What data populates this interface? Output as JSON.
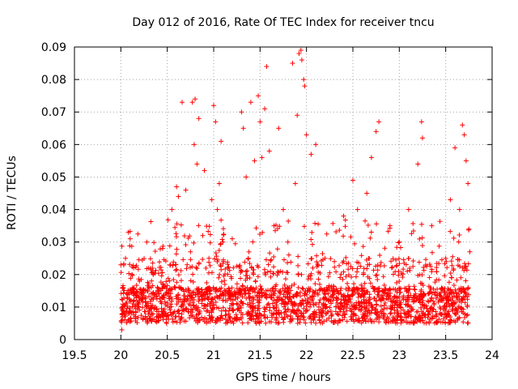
{
  "chart_data": {
    "type": "scatter",
    "title": "Day 012 of 2016, Rate Of TEC Index for receiver tncu",
    "xlabel": "GPS time / hours",
    "ylabel": "ROTI / TECUs",
    "xlim": [
      19.5,
      24
    ],
    "ylim": [
      0,
      0.09
    ],
    "x_ticks": [
      "19.5",
      "20",
      "20.5",
      "21",
      "21.5",
      "22",
      "22.5",
      "23",
      "23.5",
      "24"
    ],
    "y_ticks": [
      "0",
      "0.01",
      "0.02",
      "0.03",
      "0.04",
      "0.05",
      "0.06",
      "0.07",
      "0.08",
      "0.09"
    ],
    "grid": true,
    "marker": "plus",
    "series": [
      {
        "name": "ROTI",
        "color": "#ff0000",
        "points": [
          [
            20.0,
            0.023
          ],
          [
            20.01,
            0.003
          ],
          [
            20.02,
            0.016
          ],
          [
            20.05,
            0.025
          ],
          [
            20.08,
            0.033
          ],
          [
            20.1,
            0.031
          ],
          [
            20.12,
            0.02
          ],
          [
            20.2,
            0.018
          ],
          [
            20.3,
            0.022
          ],
          [
            20.45,
            0.028
          ],
          [
            20.55,
            0.04
          ],
          [
            20.6,
            0.047
          ],
          [
            20.62,
            0.044
          ],
          [
            20.66,
            0.073
          ],
          [
            20.7,
            0.046
          ],
          [
            20.75,
            0.027
          ],
          [
            20.77,
            0.073
          ],
          [
            20.79,
            0.06
          ],
          [
            20.8,
            0.074
          ],
          [
            20.82,
            0.054
          ],
          [
            20.84,
            0.068
          ],
          [
            20.9,
            0.052
          ],
          [
            20.98,
            0.043
          ],
          [
            21.0,
            0.072
          ],
          [
            21.02,
            0.067
          ],
          [
            21.04,
            0.04
          ],
          [
            21.06,
            0.048
          ],
          [
            21.08,
            0.061
          ],
          [
            21.1,
            0.03
          ],
          [
            21.2,
            0.031
          ],
          [
            21.3,
            0.07
          ],
          [
            21.32,
            0.065
          ],
          [
            21.35,
            0.05
          ],
          [
            21.4,
            0.073
          ],
          [
            21.44,
            0.055
          ],
          [
            21.48,
            0.075
          ],
          [
            21.5,
            0.067
          ],
          [
            21.52,
            0.056
          ],
          [
            21.55,
            0.071
          ],
          [
            21.57,
            0.084
          ],
          [
            21.6,
            0.058
          ],
          [
            21.65,
            0.035
          ],
          [
            21.7,
            0.065
          ],
          [
            21.75,
            0.04
          ],
          [
            21.8,
            0.03
          ],
          [
            21.85,
            0.085
          ],
          [
            21.88,
            0.048
          ],
          [
            21.9,
            0.069
          ],
          [
            21.92,
            0.088
          ],
          [
            21.94,
            0.089
          ],
          [
            21.95,
            0.086
          ],
          [
            21.97,
            0.08
          ],
          [
            21.98,
            0.078
          ],
          [
            22.0,
            0.063
          ],
          [
            22.05,
            0.057
          ],
          [
            22.1,
            0.06
          ],
          [
            22.2,
            0.025
          ],
          [
            22.3,
            0.024
          ],
          [
            22.4,
            0.038
          ],
          [
            22.5,
            0.049
          ],
          [
            22.55,
            0.04
          ],
          [
            22.65,
            0.045
          ],
          [
            22.7,
            0.056
          ],
          [
            22.75,
            0.064
          ],
          [
            22.78,
            0.067
          ],
          [
            22.9,
            0.035
          ],
          [
            23.0,
            0.03
          ],
          [
            23.1,
            0.04
          ],
          [
            23.2,
            0.054
          ],
          [
            23.24,
            0.067
          ],
          [
            23.25,
            0.062
          ],
          [
            23.35,
            0.035
          ],
          [
            23.5,
            0.025
          ],
          [
            23.55,
            0.043
          ],
          [
            23.6,
            0.059
          ],
          [
            23.65,
            0.04
          ],
          [
            23.68,
            0.066
          ],
          [
            23.7,
            0.063
          ],
          [
            23.72,
            0.055
          ],
          [
            23.74,
            0.048
          ],
          [
            23.75,
            0.034
          ],
          [
            23.76,
            0.027
          ]
        ]
      }
    ]
  }
}
